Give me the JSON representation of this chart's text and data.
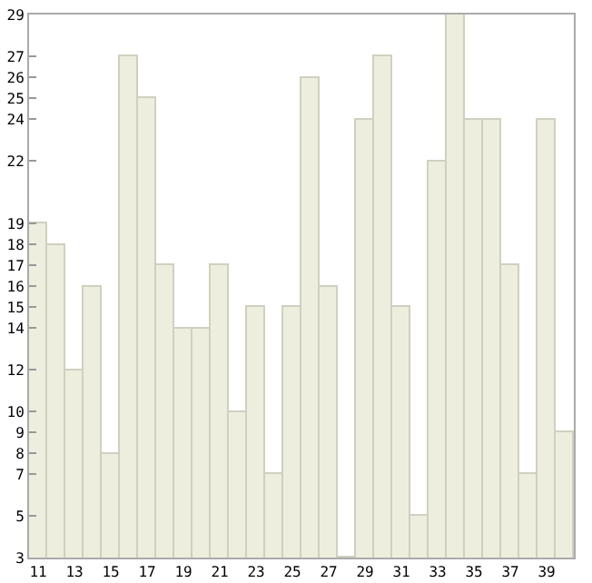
{
  "chart_data": {
    "type": "bar",
    "categories": [
      "11",
      null,
      "13",
      null,
      "15",
      null,
      "17",
      null,
      "19",
      null,
      "21",
      null,
      "23",
      null,
      "25",
      null,
      "27",
      null,
      "29",
      null,
      "31",
      null,
      "33",
      null,
      "35",
      null,
      "37",
      null,
      "39",
      null
    ],
    "values": [
      19,
      18,
      12,
      16,
      8,
      27,
      25,
      17,
      14,
      14,
      17,
      10,
      15,
      7,
      15,
      26,
      16,
      3,
      24,
      27,
      15,
      5,
      22,
      29,
      24,
      24,
      17,
      7,
      24,
      9
    ],
    "color": "#eeeedf",
    "ylim": [
      3,
      29
    ],
    "yticks": [
      3,
      5,
      7,
      8,
      9,
      10,
      12,
      14,
      15,
      16,
      17,
      18,
      19,
      22,
      24,
      25,
      26,
      27,
      29
    ],
    "grid": false
  }
}
